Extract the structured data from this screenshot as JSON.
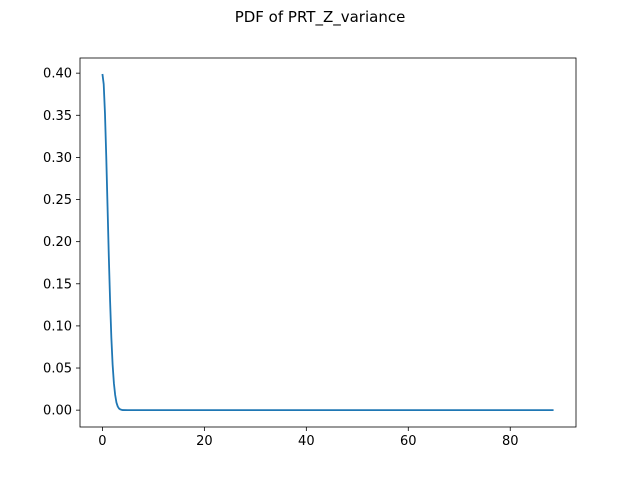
{
  "chart_data": {
    "type": "line",
    "title": "PDF of PRT_Z_variance",
    "xlabel": "",
    "ylabel": "",
    "xlim": [
      -4.4,
      92.9
    ],
    "ylim": [
      -0.02,
      0.418
    ],
    "grid": false,
    "xticks": [
      0,
      20,
      40,
      60,
      80
    ],
    "yticks": [
      0.0,
      0.05,
      0.1,
      0.15,
      0.2,
      0.25,
      0.3,
      0.35,
      0.4
    ],
    "xtick_labels": [
      "0",
      "20",
      "40",
      "60",
      "80"
    ],
    "ytick_labels": [
      "0.00",
      "0.05",
      "0.10",
      "0.15",
      "0.20",
      "0.25",
      "0.30",
      "0.35",
      "0.40"
    ],
    "series": [
      {
        "color": "#1f77b4",
        "x": [
          0,
          0.25,
          0.5,
          0.75,
          1.0,
          1.25,
          1.5,
          1.75,
          2.0,
          2.25,
          2.5,
          2.75,
          3.0,
          3.25,
          3.5,
          3.75,
          4.0,
          5,
          10,
          20,
          40,
          60,
          80,
          88.5
        ],
        "y": [
          0.399,
          0.387,
          0.352,
          0.301,
          0.242,
          0.183,
          0.13,
          0.086,
          0.054,
          0.032,
          0.018,
          0.009,
          0.0044,
          0.002,
          0.0009,
          0.0004,
          0.0001,
          0.0,
          0.0,
          0.0,
          0.0,
          0.0,
          0.0,
          0.0
        ]
      }
    ]
  }
}
